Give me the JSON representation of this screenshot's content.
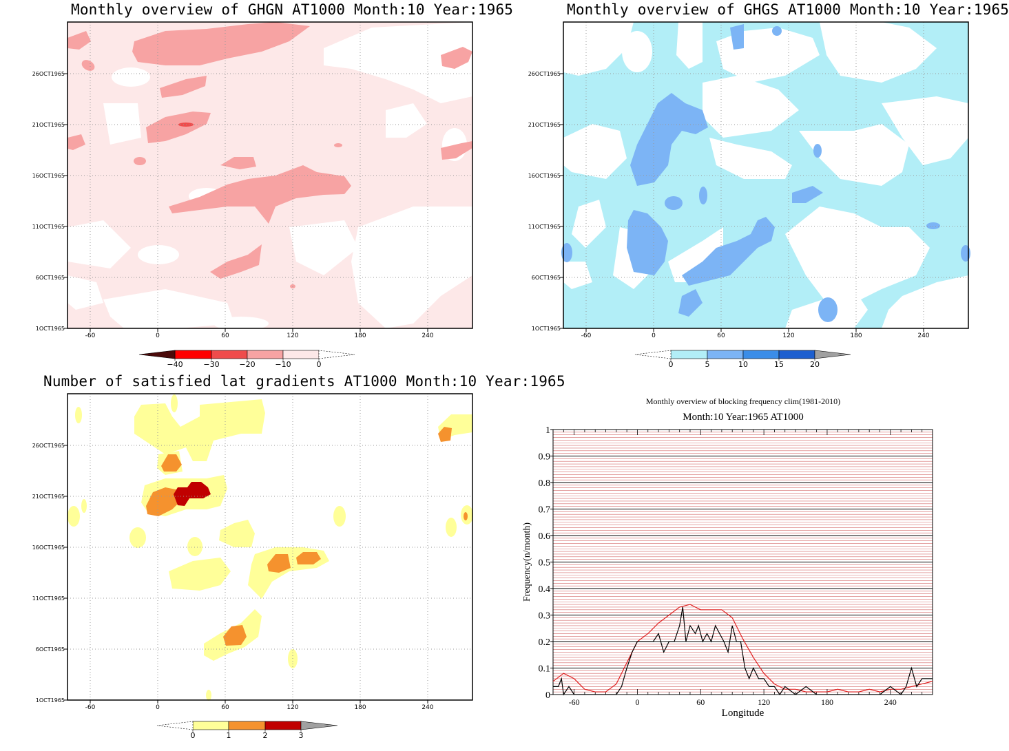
{
  "panels": {
    "ghgn": {
      "title": "Monthly overview of GHGN AT1000 Month:10 Year:1965",
      "x_ticks": [
        "-60",
        "0",
        "60",
        "120",
        "180",
        "240"
      ],
      "y_ticks": [
        "1OCT1965",
        "6OCT1965",
        "11OCT1965",
        "16OCT1965",
        "21OCT1965",
        "26OCT1965"
      ],
      "colorbar": [
        "−40",
        "−30",
        "−20",
        "−10",
        "0"
      ],
      "colors": [
        "#4a0a0a",
        "#ff0000",
        "#ef4b4b",
        "#f7a3a3",
        "#fde8e8"
      ]
    },
    "ghgs": {
      "title": "Monthly overview of GHGS AT1000 Month:10 Year:1965",
      "x_ticks": [
        "-60",
        "0",
        "60",
        "120",
        "180",
        "240"
      ],
      "y_ticks": [
        "1OCT1965",
        "6OCT1965",
        "11OCT1965",
        "16OCT1965",
        "21OCT1965",
        "26OCT1965"
      ],
      "colorbar": [
        "0",
        "5",
        "10",
        "15",
        "20"
      ],
      "colors": [
        "#b2eef7",
        "#7cb4f5",
        "#3b8de8",
        "#1d5fcf",
        "#a0a0a0"
      ]
    },
    "lat_gradients": {
      "title": "Number of satisfied lat gradients AT1000 Month:10 Year:1965",
      "x_ticks": [
        "-60",
        "0",
        "60",
        "120",
        "180",
        "240"
      ],
      "y_ticks": [
        "1OCT1965",
        "6OCT1965",
        "11OCT1965",
        "16OCT1965",
        "21OCT1965",
        "26OCT1965"
      ],
      "colorbar": [
        "0",
        "1",
        "2",
        "3"
      ],
      "colors": [
        "#ffff99",
        "#f5922e",
        "#c00000",
        "#a0a0a0"
      ]
    }
  },
  "chart_data": {
    "type": "line",
    "title": "Monthly overview of blocking frequency clim(1981-2010)",
    "subtitle": "Month:10 Year:1965  AT1000",
    "xlabel": "Longitude",
    "ylabel": "Frequency(n/month)",
    "xlim": [
      -80,
      280
    ],
    "ylim": [
      0,
      1
    ],
    "x_ticks": [
      "-60",
      "0",
      "60",
      "120",
      "180",
      "240"
    ],
    "y_ticks": [
      "0",
      "0.1",
      "0.2",
      "0.3",
      "0.4",
      "0.5",
      "0.6",
      "0.7",
      "0.8",
      "0.9",
      "1"
    ],
    "grid": true,
    "series": [
      {
        "color": "#e02020",
        "x": [
          -80,
          -70,
          -60,
          -50,
          -40,
          -30,
          -20,
          -10,
          0,
          10,
          20,
          30,
          40,
          50,
          60,
          70,
          80,
          90,
          100,
          110,
          120,
          130,
          140,
          150,
          160,
          170,
          180,
          190,
          200,
          210,
          220,
          230,
          240,
          250,
          260,
          270,
          280
        ],
        "values": [
          0.05,
          0.08,
          0.06,
          0.02,
          0.01,
          0.01,
          0.04,
          0.12,
          0.2,
          0.23,
          0.27,
          0.3,
          0.33,
          0.34,
          0.32,
          0.32,
          0.32,
          0.29,
          0.21,
          0.14,
          0.08,
          0.04,
          0.02,
          0.02,
          0.01,
          0.01,
          0.01,
          0.02,
          0.01,
          0.01,
          0.02,
          0.01,
          0.02,
          0.02,
          0.03,
          0.04,
          0.05
        ]
      },
      {
        "color": "#000000",
        "x": [
          -80,
          -75,
          -72,
          -70,
          -65,
          -60,
          -55,
          -50,
          -40,
          -30,
          -20,
          -15,
          -10,
          -5,
          0,
          5,
          10,
          15,
          20,
          25,
          30,
          35,
          40,
          43,
          46,
          50,
          55,
          58,
          62,
          66,
          70,
          74,
          78,
          82,
          86,
          90,
          94,
          98,
          102,
          106,
          110,
          115,
          120,
          125,
          130,
          135,
          140,
          150,
          160,
          170,
          180,
          190,
          200,
          210,
          220,
          230,
          240,
          250,
          255,
          260,
          265,
          270,
          275,
          280
        ],
        "values": [
          0.03,
          0.03,
          0.06,
          0.0,
          0.03,
          0.0,
          0.0,
          0.0,
          0.0,
          0.0,
          0.0,
          0.03,
          0.1,
          0.16,
          0.2,
          0.2,
          0.2,
          0.2,
          0.23,
          0.16,
          0.2,
          0.2,
          0.26,
          0.33,
          0.2,
          0.26,
          0.23,
          0.26,
          0.2,
          0.23,
          0.2,
          0.26,
          0.23,
          0.2,
          0.16,
          0.26,
          0.2,
          0.2,
          0.1,
          0.06,
          0.1,
          0.06,
          0.06,
          0.03,
          0.03,
          0.0,
          0.03,
          0.0,
          0.03,
          0.0,
          0.0,
          0.0,
          0.0,
          0.0,
          0.0,
          0.0,
          0.03,
          0.0,
          0.03,
          0.1,
          0.03,
          0.06,
          0.06,
          0.06
        ]
      }
    ]
  }
}
